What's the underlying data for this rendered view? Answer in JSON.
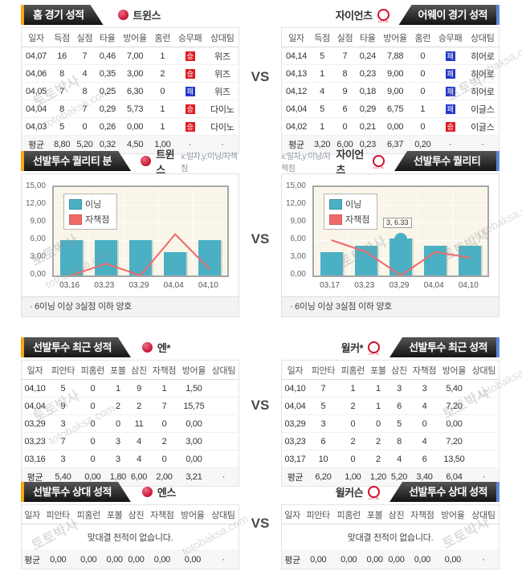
{
  "vs": "VS",
  "watermark": {
    "kr": "토토박사",
    "en": "totobaksa.com"
  },
  "logos": {
    "lotte_label": "LOTTE"
  },
  "colors": {
    "tab_accent_left": "#f5a60a",
    "tab_accent_right": "#5b87d8",
    "bar": "#4bb0c4",
    "line": "#f06969",
    "win_badge": "#df1d24",
    "loss_badge": "#2438c8"
  },
  "sections": {
    "home_away": {
      "left": {
        "tab": "홈 경기 성적",
        "team": "트윈스",
        "table": {
          "columns": [
            "일자",
            "득점",
            "실점",
            "타율",
            "방어율",
            "홈런",
            "승무패",
            "상대팀"
          ],
          "rows": [
            [
              "04,07",
              "16",
              "7",
              "0,46",
              "7,00",
              "1",
              "승",
              "위즈"
            ],
            [
              "04,06",
              "8",
              "4",
              "0,35",
              "3,00",
              "2",
              "승",
              "위즈"
            ],
            [
              "04,05",
              "7",
              "8",
              "0,25",
              "6,30",
              "0",
              "패",
              "위즈"
            ],
            [
              "04,04",
              "8",
              "7",
              "0,29",
              "5,73",
              "1",
              "승",
              "다이노"
            ],
            [
              "04,03",
              "5",
              "0",
              "0,26",
              "0,00",
              "1",
              "승",
              "다이노"
            ]
          ],
          "avg": [
            "평균",
            "8,80",
            "5,20",
            "0,32",
            "4,50",
            "1,00",
            "·",
            "·"
          ]
        }
      },
      "right": {
        "tab": "어웨이 경기 성적",
        "team": "자이언츠",
        "table": {
          "columns": [
            "일자",
            "득점",
            "실점",
            "타율",
            "방어율",
            "홈런",
            "승무패",
            "상대팀"
          ],
          "rows": [
            [
              "04,14",
              "5",
              "7",
              "0,24",
              "7,88",
              "0",
              "패",
              "히어로"
            ],
            [
              "04,13",
              "1",
              "8",
              "0,23",
              "9,00",
              "0",
              "패",
              "히어로"
            ],
            [
              "04,12",
              "4",
              "9",
              "0,18",
              "9,00",
              "0",
              "패",
              "히어로"
            ],
            [
              "04,04",
              "5",
              "6",
              "0,29",
              "6,75",
              "1",
              "패",
              "이글스"
            ],
            [
              "04,02",
              "1",
              "0",
              "0,21",
              "0,00",
              "0",
              "승",
              "이글스"
            ]
          ],
          "avg": [
            "평균",
            "3,20",
            "6,00",
            "0,23",
            "6,37",
            "0,20",
            "·",
            "·"
          ]
        }
      }
    },
    "quality": {
      "left": {
        "tab": "선발투수 퀄리티 분석",
        "team": "트윈스",
        "axis_note": "x:일자,y:이닝/자책점",
        "note": "·  6이닝 이상 3실점 이하 양호"
      },
      "right": {
        "tab": "선발투수 퀄리티분석",
        "team": "자이언츠",
        "axis_note": "x:일자,y:이닝/자책점",
        "note": "·  6이닝 이상 3실점 이하 양호"
      }
    },
    "recent": {
      "left": {
        "tab": "선발투수 최근 성적",
        "name": "엔*",
        "table": {
          "columns": [
            "일자",
            "피안타",
            "피홈런",
            "포볼",
            "삼진",
            "자책점",
            "방어율",
            "상대팀"
          ],
          "rows": [
            [
              "04,10",
              "5",
              "0",
              "1",
              "9",
              "1",
              "1,50",
              ""
            ],
            [
              "04,04",
              "9",
              "0",
              "2",
              "2",
              "7",
              "15,75",
              ""
            ],
            [
              "03,29",
              "3",
              "0",
              "0",
              "11",
              "0",
              "0,00",
              ""
            ],
            [
              "03,23",
              "7",
              "0",
              "3",
              "4",
              "2",
              "3,00",
              ""
            ],
            [
              "03,16",
              "3",
              "0",
              "3",
              "4",
              "0",
              "0,00",
              ""
            ]
          ],
          "avg": [
            "평균",
            "5,40",
            "0,00",
            "1,80",
            "6,00",
            "2,00",
            "3,21",
            "·"
          ]
        }
      },
      "right": {
        "tab": "선발투수 최근 성적",
        "name": "윌커*",
        "table": {
          "columns": [
            "일자",
            "피안타",
            "피홈런",
            "포볼",
            "삼진",
            "자책점",
            "방어율",
            "상대팀"
          ],
          "rows": [
            [
              "04,10",
              "7",
              "1",
              "1",
              "3",
              "3",
              "5,40",
              ""
            ],
            [
              "04,04",
              "5",
              "2",
              "1",
              "6",
              "4",
              "7,20",
              ""
            ],
            [
              "03,29",
              "3",
              "0",
              "0",
              "5",
              "0",
              "0,00",
              ""
            ],
            [
              "03,23",
              "6",
              "2",
              "2",
              "8",
              "4",
              "7,20",
              ""
            ],
            [
              "03,17",
              "10",
              "0",
              "2",
              "4",
              "6",
              "13,50",
              ""
            ]
          ],
          "avg": [
            "평균",
            "6,20",
            "1,00",
            "1,20",
            "5,20",
            "3,40",
            "6,04",
            "·"
          ]
        }
      }
    },
    "versus": {
      "left": {
        "tab": "선발투수 상대 성적",
        "name": "엔스",
        "table": {
          "columns": [
            "일자",
            "피안타",
            "피홈런",
            "포볼",
            "삼진",
            "자책점",
            "방어율",
            "상대팀"
          ],
          "message": "맞대결 전적이 없습니다.",
          "avg": [
            "평균",
            "0,00",
            "0,00",
            "0,00",
            "0,00",
            "0,00",
            "0,00",
            "·"
          ]
        }
      },
      "right": {
        "tab": "선발투수 상대 성적",
        "name": "윌커슨",
        "table": {
          "columns": [
            "일자",
            "피안타",
            "피홈런",
            "포볼",
            "삼진",
            "자책점",
            "방어율",
            "상대팀"
          ],
          "message": "맞대결 전적이 없습니다.",
          "avg": [
            "평균",
            "0,00",
            "0,00",
            "0,00",
            "0,00",
            "0,00",
            "0,00",
            "·"
          ]
        }
      }
    }
  },
  "chart_data": [
    {
      "type": "bar",
      "title": "선발투수 퀄리티 분석",
      "team": "트윈스",
      "xlabel": "일자",
      "ylabel": "이닝/자책점",
      "categories": [
        "03,16",
        "03,23",
        "03,29",
        "04,04",
        "04,10"
      ],
      "series": [
        {
          "name": "이닝",
          "type": "bar",
          "values": [
            6,
            6,
            6,
            4,
            6
          ]
        },
        {
          "name": "자책점",
          "type": "line",
          "values": [
            0,
            2,
            0,
            7,
            1
          ]
        }
      ],
      "ylim": [
        0,
        15
      ],
      "yticks": [
        "15,00",
        "12,00",
        "9,00",
        "6,00",
        "3,00",
        "0,00"
      ],
      "grid": true,
      "legend_position": "top-left"
    },
    {
      "type": "bar",
      "title": "선발투수 퀄리티분석",
      "team": "자이언츠",
      "xlabel": "일자",
      "ylabel": "이닝/자책점",
      "categories": [
        "03,17",
        "03,23",
        "03,29",
        "04,04",
        "04,10"
      ],
      "series": [
        {
          "name": "이닝",
          "type": "bar",
          "values": [
            4,
            5,
            6.33,
            5,
            5
          ]
        },
        {
          "name": "자책점",
          "type": "line",
          "values": [
            6,
            4,
            0,
            4,
            3
          ]
        }
      ],
      "ylim": [
        0,
        15
      ],
      "yticks": [
        "15,00",
        "12,00",
        "9,00",
        "6,00",
        "3,00",
        "0,00"
      ],
      "grid": true,
      "legend_position": "top-left",
      "annotation": {
        "index": 2,
        "label": "3, 6.33"
      }
    }
  ]
}
